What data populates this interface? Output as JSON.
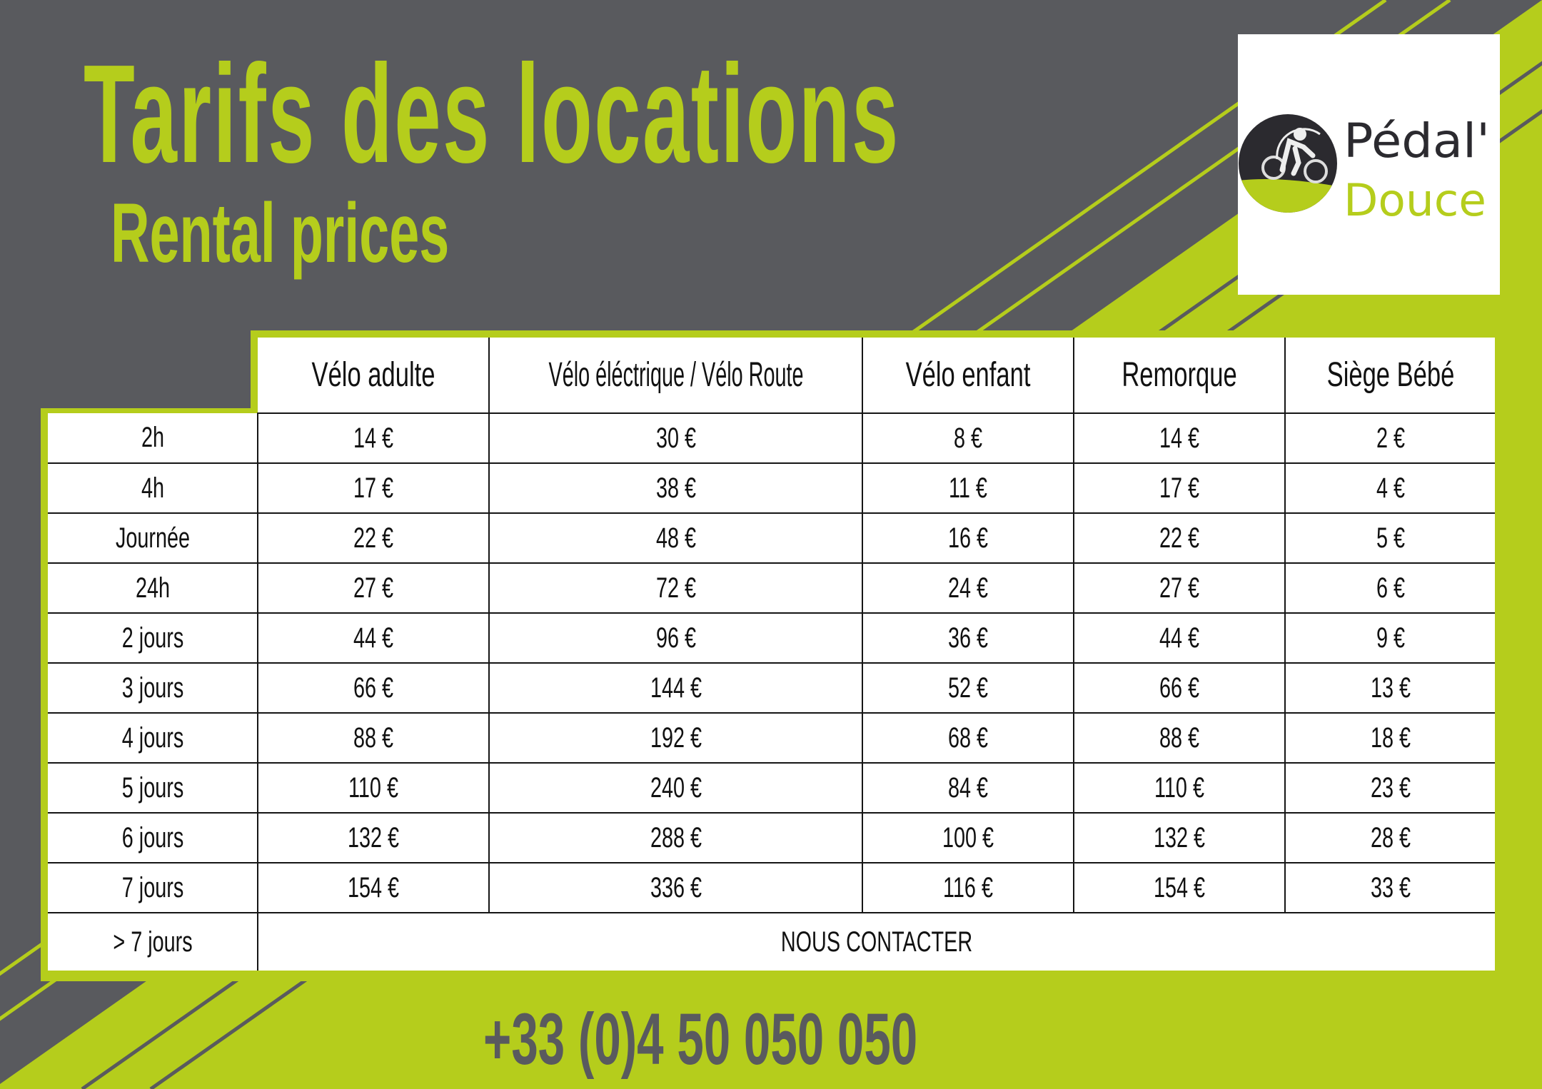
{
  "colors": {
    "background_grey": "#595a5e",
    "accent_green": "#b5cd1c",
    "logo_dark": "#2b2a2f"
  },
  "header": {
    "title": "Tarifs des locations",
    "subtitle": "Rental prices"
  },
  "logo": {
    "line1": "Pédal'",
    "line2": "Douce",
    "icon": "cyclist-icon"
  },
  "table": {
    "columns": [
      "Vélo adulte",
      "Vélo éléctrique  /  Vélo Route",
      "Vélo enfant",
      "Remorque",
      "Siège Bébé"
    ],
    "rows": [
      {
        "label": "2h",
        "values": [
          "14 €",
          "30 €",
          "8 €",
          "14 €",
          "2 €"
        ]
      },
      {
        "label": "4h",
        "values": [
          "17 €",
          "38 €",
          "11 €",
          "17 €",
          "4 €"
        ]
      },
      {
        "label": "Journée",
        "values": [
          "22 €",
          "48 €",
          "16 €",
          "22 €",
          "5 €"
        ]
      },
      {
        "label": "24h",
        "values": [
          "27 €",
          "72 €",
          "24 €",
          "27 €",
          "6 €"
        ]
      },
      {
        "label": "2 jours",
        "values": [
          "44 €",
          "96 €",
          "36 €",
          "44 €",
          "9 €"
        ]
      },
      {
        "label": "3 jours",
        "values": [
          "66 €",
          "144 €",
          "52 €",
          "66 €",
          "13 €"
        ]
      },
      {
        "label": "4 jours",
        "values": [
          "88 €",
          "192 €",
          "68 €",
          "88 €",
          "18 €"
        ]
      },
      {
        "label": "5 jours",
        "values": [
          "110 €",
          "240 €",
          "84 €",
          "110 €",
          "23 €"
        ]
      },
      {
        "label": "6 jours",
        "values": [
          "132 €",
          "288 €",
          "100 €",
          "132 €",
          "28 €"
        ]
      },
      {
        "label": "7 jours",
        "values": [
          "154 €",
          "336 €",
          "116 €",
          "154 €",
          "33 €"
        ]
      }
    ],
    "last_row": {
      "label": "> 7 jours",
      "text": "NOUS CONTACTER"
    }
  },
  "contact": {
    "phone": "+33 (0)4 50 050 050"
  }
}
